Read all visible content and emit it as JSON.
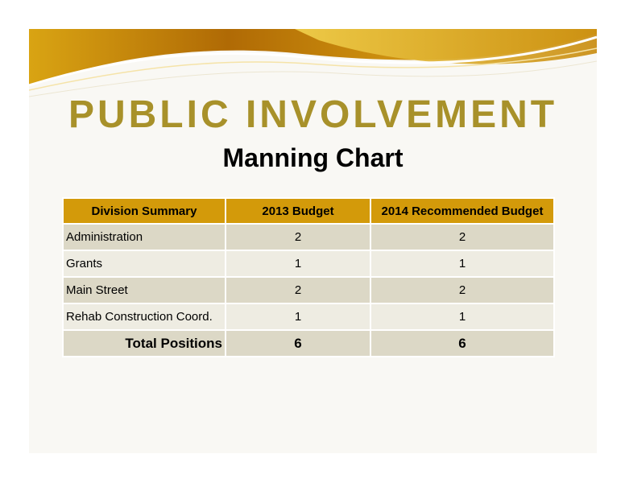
{
  "slide": {
    "title": "PUBLIC INVOLVEMENT",
    "subtitle": "Manning Chart"
  },
  "colors": {
    "title": "#a8912a",
    "header_bg": "#d39a0a",
    "row_dark": "#dcd8c6",
    "row_light": "#eeece2"
  },
  "table": {
    "columns": [
      "Division Summary",
      "2013 Budget",
      "2014 Recommended Budget"
    ],
    "rows": [
      {
        "division": "Administration",
        "budget_2013": "2",
        "budget_2014": "2"
      },
      {
        "division": "Grants",
        "budget_2013": "1",
        "budget_2014": "1"
      },
      {
        "division": "Main Street",
        "budget_2013": "2",
        "budget_2014": "2"
      },
      {
        "division": "Rehab Construction Coord.",
        "budget_2013": "1",
        "budget_2014": "1"
      }
    ],
    "total": {
      "label": "Total Positions",
      "budget_2013": "6",
      "budget_2014": "6"
    }
  }
}
